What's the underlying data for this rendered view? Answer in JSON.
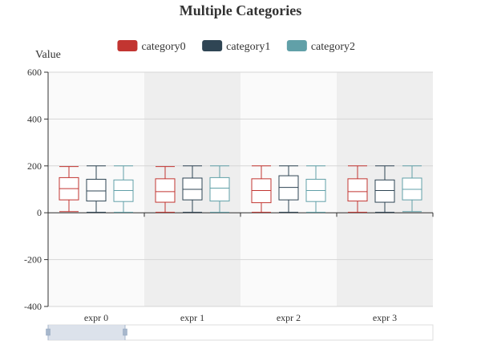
{
  "chart_data": {
    "type": "boxplot",
    "title": "Multiple Categories",
    "ylabel": "Value",
    "xlabel": "",
    "ylim": [
      -400,
      600
    ],
    "yticks": [
      -400,
      -200,
      0,
      200,
      400,
      600
    ],
    "y_tick_labels": [
      "-400",
      "-200",
      "0",
      "200",
      "400",
      "600"
    ],
    "grid": true,
    "legend_position": "top-center",
    "categories": [
      "expr 0",
      "expr 1",
      "expr 2",
      "expr 3"
    ],
    "series": [
      {
        "name": "category0",
        "color": "#c23531",
        "boxes": [
          {
            "min": 5,
            "q1": 55,
            "median": 103,
            "q3": 150,
            "max": 197
          },
          {
            "min": 2,
            "q1": 45,
            "median": 90,
            "q3": 145,
            "max": 197
          },
          {
            "min": 2,
            "q1": 43,
            "median": 95,
            "q3": 145,
            "max": 200
          },
          {
            "min": 2,
            "q1": 50,
            "median": 90,
            "q3": 145,
            "max": 200
          }
        ]
      },
      {
        "name": "category1",
        "color": "#2f4554",
        "boxes": [
          {
            "min": 2,
            "q1": 50,
            "median": 93,
            "q3": 143,
            "max": 200
          },
          {
            "min": 2,
            "q1": 55,
            "median": 100,
            "q3": 148,
            "max": 200
          },
          {
            "min": 2,
            "q1": 55,
            "median": 108,
            "q3": 158,
            "max": 200
          },
          {
            "min": 2,
            "q1": 45,
            "median": 95,
            "q3": 140,
            "max": 200
          }
        ]
      },
      {
        "name": "category2",
        "color": "#61a0a8",
        "boxes": [
          {
            "min": 2,
            "q1": 48,
            "median": 95,
            "q3": 140,
            "max": 200
          },
          {
            "min": 2,
            "q1": 50,
            "median": 105,
            "q3": 150,
            "max": 200
          },
          {
            "min": 2,
            "q1": 48,
            "median": 95,
            "q3": 143,
            "max": 200
          },
          {
            "min": 5,
            "q1": 55,
            "median": 100,
            "q3": 148,
            "max": 200
          }
        ]
      }
    ],
    "datazoom": {
      "start_fraction": 0,
      "end_fraction": 0.2
    }
  }
}
